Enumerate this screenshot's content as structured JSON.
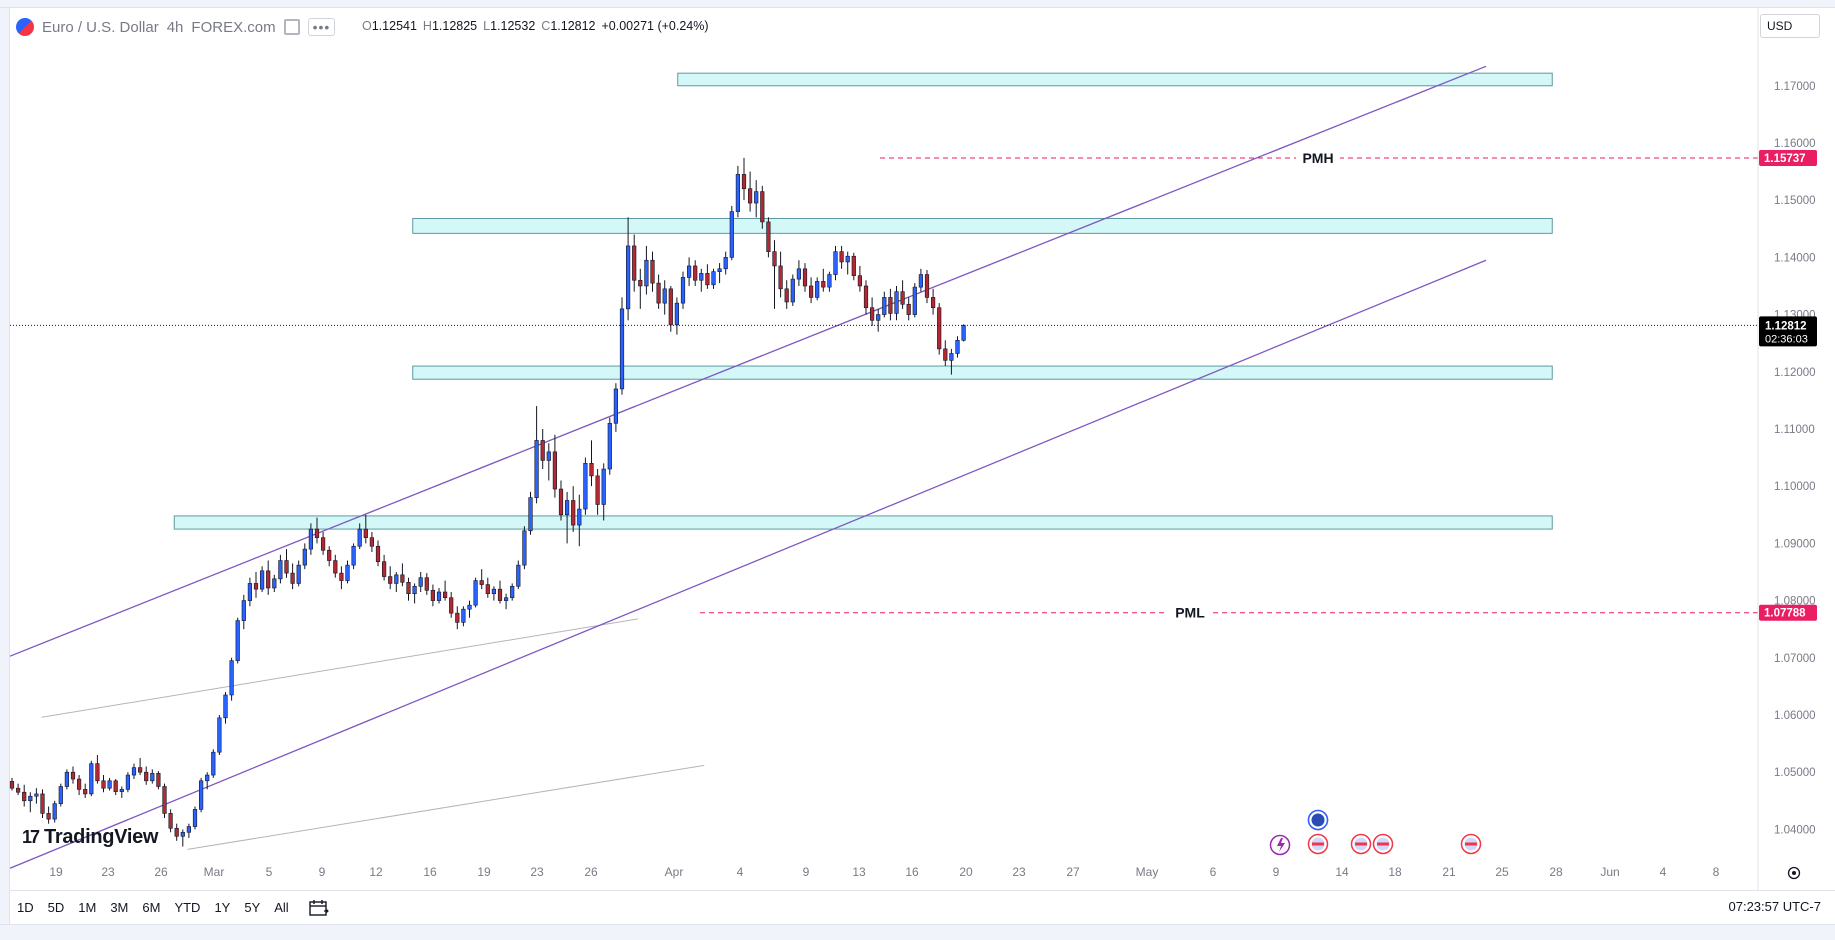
{
  "header": {
    "symbol": "Euro / U.S. Dollar",
    "interval": "4h",
    "exchange": "FOREX.com",
    "ohlc": {
      "o_label": "O",
      "o": "1.12541",
      "h_label": "H",
      "h": "1.12825",
      "l_label": "L",
      "l": "1.12532",
      "c_label": "C",
      "c": "1.12812",
      "change": "+0.00271 (+0.24%)"
    },
    "currency": "USD"
  },
  "price_scale": {
    "ticks": [
      "1.17000",
      "1.16000",
      "1.15000",
      "1.14000",
      "1.13000",
      "1.12000",
      "1.11000",
      "1.10000",
      "1.09000",
      "1.08000",
      "1.07000",
      "1.06000",
      "1.05000",
      "1.04000"
    ],
    "last_price": "1.12812",
    "countdown": "02:36:03",
    "pmh_price": "1.15737",
    "pml_price": "1.07788"
  },
  "time_axis": {
    "labels": [
      "19",
      "23",
      "26",
      "Mar",
      "5",
      "9",
      "12",
      "16",
      "19",
      "23",
      "26",
      "Apr",
      "4",
      "9",
      "13",
      "16",
      "20",
      "23",
      "27",
      "May",
      "6",
      "9",
      "14",
      "18",
      "21",
      "25",
      "28",
      "Jun",
      "4",
      "8"
    ]
  },
  "annotations": {
    "pmh": "PMH",
    "pml": "PML"
  },
  "brand": "TradingView",
  "bottom_bar": {
    "ranges": [
      "1D",
      "5D",
      "1M",
      "3M",
      "6M",
      "YTD",
      "1Y",
      "5Y",
      "All"
    ],
    "clock": "07:23:57 UTC-7"
  },
  "colors": {
    "up": "#2962ff",
    "down": "#b22833",
    "zone_fill": "#d4f8f8",
    "zone_stroke": "#5b9aa0",
    "channel": "#7e57c2",
    "level": "#e91e63",
    "last_price_bg": "#000000"
  },
  "chart_data": {
    "type": "candlestick",
    "instrument": "Euro / U.S. Dollar",
    "timeframe": "4h",
    "ylim": [
      1.035,
      1.178
    ],
    "x_range": [
      "Feb 16",
      "Jun 10"
    ],
    "last": 1.12812,
    "pmh": 1.15737,
    "pml": 1.07788,
    "zones": [
      {
        "from": "Apr 5",
        "to": "Jun 10",
        "low": 1.17,
        "high": 1.1722
      },
      {
        "from": "Mar 16",
        "to": "Jun 10",
        "low": 1.1442,
        "high": 1.1468
      },
      {
        "from": "Mar 16",
        "to": "Jun 10",
        "low": 1.1187,
        "high": 1.121
      },
      {
        "from": "Feb 26",
        "to": "Jun 10",
        "low": 1.0925,
        "high": 1.0948
      }
    ],
    "channel_upper": [
      {
        "date": "Feb 16",
        "price": 1.0725
      },
      {
        "date": "Jun 5",
        "price": 1.1734
      }
    ],
    "channel_lower": [
      {
        "date": "Feb 16",
        "price": 1.0355
      },
      {
        "date": "Jun 5",
        "price": 1.1395
      }
    ],
    "gray_lines": [
      [
        {
          "date": "Feb 16",
          "price": 1.0596
        },
        {
          "date": "Apr 2",
          "price": 1.0768
        }
      ],
      [
        {
          "date": "Feb 27",
          "price": 1.0365
        },
        {
          "date": "Apr 7",
          "price": 1.0512
        }
      ]
    ],
    "candles": [
      [
        0,
        1.0484,
        1.049,
        1.0468,
        1.0472
      ],
      [
        0.5,
        1.0472,
        1.048,
        1.046,
        1.0465
      ],
      [
        1,
        1.0465,
        1.0478,
        1.044,
        1.045
      ],
      [
        1.5,
        1.045,
        1.0465,
        1.043,
        1.0458
      ],
      [
        2,
        1.0458,
        1.0472,
        1.0445,
        1.0462
      ],
      [
        2.5,
        1.0462,
        1.047,
        1.042,
        1.0428
      ],
      [
        3,
        1.0428,
        1.044,
        1.041,
        1.0418
      ],
      [
        3.5,
        1.0418,
        1.045,
        1.0412,
        1.0445
      ],
      [
        4,
        1.0445,
        1.048,
        1.044,
        1.0475
      ],
      [
        4.5,
        1.0475,
        1.0505,
        1.047,
        1.05
      ],
      [
        5,
        1.05,
        1.051,
        1.048,
        1.0488
      ],
      [
        5.5,
        1.0488,
        1.0495,
        1.046,
        1.047
      ],
      [
        6,
        1.047,
        1.048,
        1.0455,
        1.0462
      ],
      [
        6.5,
        1.0462,
        1.052,
        1.0458,
        1.0515
      ],
      [
        7,
        1.0515,
        1.053,
        1.048,
        1.0485
      ],
      [
        7.5,
        1.0485,
        1.0495,
        1.0465,
        1.0472
      ],
      [
        8,
        1.0472,
        1.049,
        1.0468,
        1.0485
      ],
      [
        8.5,
        1.0485,
        1.0488,
        1.046,
        1.0466
      ],
      [
        9,
        1.0466,
        1.0475,
        1.0455,
        1.047
      ],
      [
        9.5,
        1.047,
        1.05,
        1.0465,
        1.0495
      ],
      [
        10,
        1.0495,
        1.0515,
        1.0488,
        1.0508
      ],
      [
        10.5,
        1.0508,
        1.0525,
        1.0495,
        1.05
      ],
      [
        11,
        1.05,
        1.051,
        1.0478,
        1.0485
      ],
      [
        11.5,
        1.0485,
        1.0505,
        1.048,
        1.0498
      ],
      [
        12,
        1.0498,
        1.0502,
        1.047,
        1.0475
      ],
      [
        12.5,
        1.0475,
        1.048,
        1.042,
        1.0428
      ],
      [
        13,
        1.0428,
        1.0435,
        1.0395,
        1.0402
      ],
      [
        13.5,
        1.0402,
        1.041,
        1.038,
        1.0388
      ],
      [
        14,
        1.0388,
        1.04,
        1.037,
        1.0395
      ],
      [
        14.5,
        1.0395,
        1.041,
        1.0385,
        1.0405
      ],
      [
        15,
        1.0405,
        1.044,
        1.04,
        1.0435
      ],
      [
        15.5,
        1.0435,
        1.049,
        1.043,
        1.0485
      ],
      [
        16,
        1.0485,
        1.05,
        1.047,
        1.0495
      ],
      [
        16.5,
        1.0495,
        1.054,
        1.049,
        1.0535
      ],
      [
        17,
        1.0535,
        1.06,
        1.053,
        1.0595
      ],
      [
        17.5,
        1.0595,
        1.064,
        1.0585,
        1.0635
      ],
      [
        18,
        1.0635,
        1.07,
        1.0625,
        1.0695
      ],
      [
        18.5,
        1.0695,
        1.077,
        1.069,
        1.0765
      ],
      [
        19,
        1.0765,
        1.081,
        1.075,
        1.08
      ],
      [
        19.5,
        1.08,
        1.084,
        1.079,
        1.083
      ],
      [
        20,
        1.083,
        1.085,
        1.0805,
        1.082
      ],
      [
        20.5,
        1.082,
        1.086,
        1.0815,
        1.0852
      ],
      [
        21,
        1.0852,
        1.087,
        1.081,
        1.0822
      ],
      [
        21.5,
        1.0822,
        1.0845,
        1.0815,
        1.0838
      ],
      [
        22,
        1.0838,
        1.088,
        1.083,
        1.087
      ],
      [
        22.5,
        1.087,
        1.089,
        1.084,
        1.0848
      ],
      [
        23,
        1.0848,
        1.0865,
        1.082,
        1.083
      ],
      [
        23.5,
        1.083,
        1.087,
        1.0825,
        1.0862
      ],
      [
        24,
        1.0862,
        1.09,
        1.0855,
        1.089
      ],
      [
        24.5,
        1.089,
        1.0935,
        1.088,
        1.0925
      ],
      [
        25,
        1.0925,
        1.0945,
        1.09,
        1.091
      ],
      [
        25.5,
        1.091,
        1.092,
        1.088,
        1.0888
      ],
      [
        26,
        1.0888,
        1.0895,
        1.086,
        1.087
      ],
      [
        26.5,
        1.087,
        1.088,
        1.084,
        1.0848
      ],
      [
        27,
        1.0848,
        1.086,
        1.082,
        1.0835
      ],
      [
        27.5,
        1.0835,
        1.087,
        1.083,
        1.0862
      ],
      [
        28,
        1.0862,
        1.09,
        1.0855,
        1.0895
      ],
      [
        28.5,
        1.0895,
        1.0935,
        1.089,
        1.0925
      ],
      [
        29,
        1.0925,
        1.095,
        1.09,
        1.091
      ],
      [
        29.5,
        1.091,
        1.092,
        1.0885,
        1.0895
      ],
      [
        30,
        1.0895,
        1.0905,
        1.086,
        1.0868
      ],
      [
        30.5,
        1.0868,
        1.088,
        1.0835,
        1.0842
      ],
      [
        31,
        1.0842,
        1.086,
        1.082,
        1.083
      ],
      [
        31.5,
        1.083,
        1.085,
        1.0815,
        1.0845
      ],
      [
        32,
        1.0845,
        1.0865,
        1.0825,
        1.0832
      ],
      [
        32.5,
        1.0832,
        1.084,
        1.08,
        1.0812
      ],
      [
        33,
        1.0812,
        1.083,
        1.0795,
        1.0825
      ],
      [
        33.5,
        1.0825,
        1.085,
        1.0815,
        1.084
      ],
      [
        34,
        1.084,
        1.0848,
        1.081,
        1.0818
      ],
      [
        34.5,
        1.0818,
        1.0828,
        1.079,
        1.08
      ],
      [
        35,
        1.08,
        1.0822,
        1.0795,
        1.0815
      ],
      [
        35.5,
        1.0815,
        1.0835,
        1.08,
        1.0805
      ],
      [
        36,
        1.0805,
        1.0815,
        1.077,
        1.0778
      ],
      [
        36.5,
        1.0778,
        1.079,
        1.075,
        1.0762
      ],
      [
        37,
        1.0762,
        1.079,
        1.0755,
        1.0785
      ],
      [
        37.5,
        1.0785,
        1.08,
        1.077,
        1.0792
      ],
      [
        38,
        1.0792,
        1.084,
        1.0788,
        1.0835
      ],
      [
        38.5,
        1.0835,
        1.0855,
        1.082,
        1.0828
      ],
      [
        39,
        1.0828,
        1.084,
        1.0805,
        1.0812
      ],
      [
        39.5,
        1.0812,
        1.0825,
        1.08,
        1.082
      ],
      [
        40,
        1.082,
        1.0835,
        1.0795,
        1.08
      ],
      [
        40.5,
        1.08,
        1.0812,
        1.0785,
        1.0805
      ],
      [
        41,
        1.0805,
        1.083,
        1.08,
        1.0825
      ],
      [
        41.5,
        1.0825,
        1.087,
        1.082,
        1.0862
      ],
      [
        42,
        1.0862,
        1.093,
        1.0855,
        1.0922
      ],
      [
        42.5,
        1.0922,
        1.099,
        1.0915,
        1.098
      ],
      [
        43,
        1.098,
        1.114,
        1.097,
        1.108
      ],
      [
        43.5,
        1.108,
        1.11,
        1.103,
        1.1045
      ],
      [
        44,
        1.1045,
        1.1075,
        1.101,
        1.106
      ],
      [
        44.5,
        1.106,
        1.109,
        1.098,
        1.0995
      ],
      [
        45,
        1.0995,
        1.101,
        1.094,
        1.095
      ],
      [
        45.5,
        1.095,
        1.099,
        1.09,
        1.0975
      ],
      [
        46,
        1.0975,
        1.1,
        1.092,
        1.0932
      ],
      [
        46.5,
        1.0932,
        1.0985,
        1.0895,
        1.096
      ],
      [
        47,
        1.096,
        1.105,
        1.095,
        1.104
      ],
      [
        47.5,
        1.104,
        1.108,
        1.1,
        1.1018
      ],
      [
        48,
        1.1018,
        1.103,
        1.095,
        1.0968
      ],
      [
        48.5,
        1.0968,
        1.104,
        1.094,
        1.103
      ],
      [
        49,
        1.103,
        1.112,
        1.102,
        1.111
      ],
      [
        49.5,
        1.111,
        1.118,
        1.1095,
        1.117
      ],
      [
        50,
        1.117,
        1.133,
        1.116,
        1.131
      ],
      [
        50.5,
        1.131,
        1.147,
        1.129,
        1.142
      ],
      [
        51,
        1.142,
        1.144,
        1.134,
        1.136
      ],
      [
        51.5,
        1.136,
        1.138,
        1.131,
        1.135
      ],
      [
        52,
        1.135,
        1.142,
        1.1335,
        1.1395
      ],
      [
        52.5,
        1.1395,
        1.141,
        1.134,
        1.1355
      ],
      [
        53,
        1.1355,
        1.137,
        1.131,
        1.132
      ],
      [
        53.5,
        1.132,
        1.136,
        1.13,
        1.1345
      ],
      [
        54,
        1.1345,
        1.135,
        1.127,
        1.1282
      ],
      [
        54.5,
        1.1282,
        1.133,
        1.1265,
        1.132
      ],
      [
        55,
        1.132,
        1.1375,
        1.131,
        1.1365
      ],
      [
        55.5,
        1.1365,
        1.14,
        1.135,
        1.1385
      ],
      [
        56,
        1.1385,
        1.1395,
        1.135,
        1.136
      ],
      [
        56.5,
        1.136,
        1.138,
        1.134,
        1.1372
      ],
      [
        57,
        1.1372,
        1.1388,
        1.1345,
        1.1352
      ],
      [
        57.5,
        1.1352,
        1.138,
        1.1345,
        1.1375
      ],
      [
        58,
        1.1375,
        1.139,
        1.1355,
        1.138
      ],
      [
        58.5,
        1.138,
        1.141,
        1.137,
        1.14
      ],
      [
        59,
        1.14,
        1.149,
        1.1395,
        1.148
      ],
      [
        59.5,
        1.148,
        1.156,
        1.147,
        1.1545
      ],
      [
        60,
        1.1545,
        1.1574,
        1.15,
        1.152
      ],
      [
        60.5,
        1.152,
        1.155,
        1.148,
        1.1495
      ],
      [
        61,
        1.1495,
        1.1535,
        1.147,
        1.1515
      ],
      [
        61.5,
        1.1515,
        1.1525,
        1.145,
        1.1462
      ],
      [
        62,
        1.1462,
        1.147,
        1.14,
        1.141
      ],
      [
        62.5,
        1.141,
        1.143,
        1.131,
        1.1385
      ],
      [
        63,
        1.1385,
        1.141,
        1.133,
        1.1345
      ],
      [
        63.5,
        1.1345,
        1.136,
        1.131,
        1.1322
      ],
      [
        64,
        1.1322,
        1.137,
        1.1315,
        1.1362
      ],
      [
        64.5,
        1.1362,
        1.1395,
        1.135,
        1.138
      ],
      [
        65,
        1.138,
        1.139,
        1.134,
        1.135
      ],
      [
        65.5,
        1.135,
        1.1365,
        1.132,
        1.133
      ],
      [
        66,
        1.133,
        1.1365,
        1.1325,
        1.1358
      ],
      [
        66.5,
        1.1358,
        1.138,
        1.134,
        1.1348
      ],
      [
        67,
        1.1348,
        1.1375,
        1.134,
        1.137
      ],
      [
        67.5,
        1.137,
        1.142,
        1.136,
        1.141
      ],
      [
        68,
        1.141,
        1.142,
        1.138,
        1.1392
      ],
      [
        68.5,
        1.1392,
        1.141,
        1.137,
        1.1402
      ],
      [
        69,
        1.1402,
        1.1408,
        1.136,
        1.1368
      ],
      [
        69.5,
        1.1368,
        1.1385,
        1.134,
        1.135
      ],
      [
        70,
        1.135,
        1.136,
        1.13,
        1.1312
      ],
      [
        70.5,
        1.1312,
        1.133,
        1.128,
        1.129
      ],
      [
        71,
        1.129,
        1.131,
        1.127,
        1.13
      ],
      [
        71.5,
        1.13,
        1.134,
        1.1295,
        1.133
      ],
      [
        72,
        1.133,
        1.1345,
        1.129,
        1.1302
      ],
      [
        72.5,
        1.1302,
        1.135,
        1.129,
        1.134
      ],
      [
        73,
        1.134,
        1.136,
        1.131,
        1.1318
      ],
      [
        73.5,
        1.1318,
        1.133,
        1.129,
        1.13
      ],
      [
        74,
        1.13,
        1.1355,
        1.1295,
        1.1348
      ],
      [
        74.5,
        1.1348,
        1.138,
        1.134,
        1.137
      ],
      [
        75,
        1.137,
        1.1378,
        1.132,
        1.133
      ],
      [
        75.5,
        1.133,
        1.1345,
        1.13,
        1.1312
      ],
      [
        76,
        1.1312,
        1.132,
        1.123,
        1.124
      ],
      [
        76.5,
        1.124,
        1.1255,
        1.121,
        1.122
      ],
      [
        77,
        1.122,
        1.124,
        1.1195,
        1.1232
      ],
      [
        77.5,
        1.1232,
        1.1262,
        1.1225,
        1.1255
      ],
      [
        78,
        1.1255,
        1.1283,
        1.1253,
        1.1281
      ]
    ]
  }
}
